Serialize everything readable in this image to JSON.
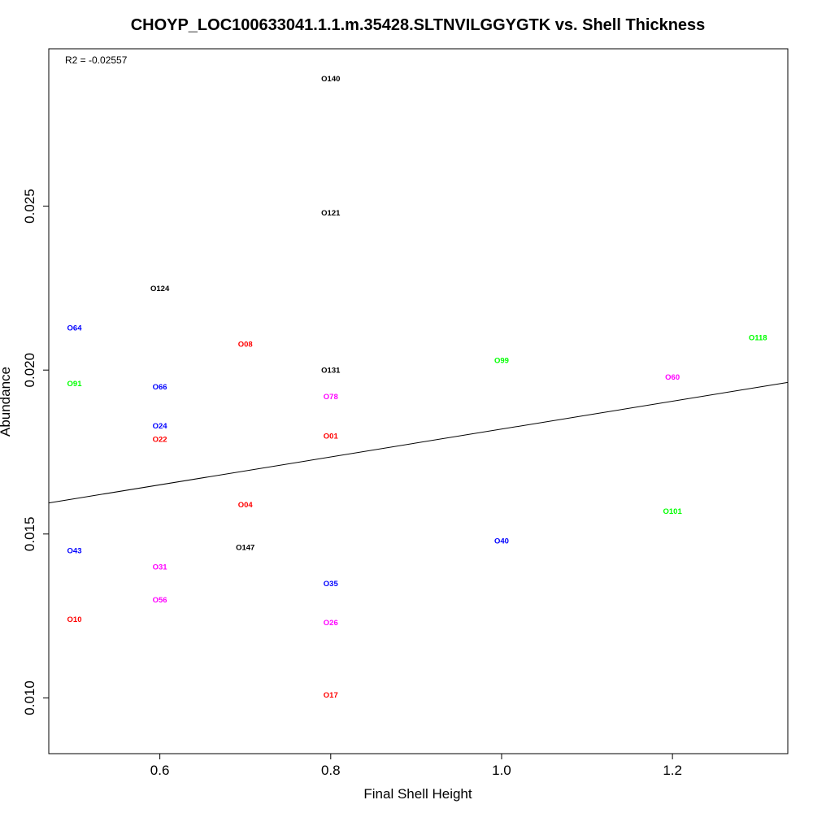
{
  "chart_data": {
    "type": "scatter",
    "title": "CHOYP_LOC100633041.1.1.m.35428.SLTNVILGGYGTK vs. Shell Thickness",
    "xlabel": "Final Shell Height",
    "ylabel": "Abundance",
    "annotation": "R2 = -0.02557",
    "xlim": [
      0.47,
      1.335
    ],
    "ylim": [
      0.0083,
      0.0298
    ],
    "x_ticks": [
      0.6,
      0.8,
      1.0,
      1.2
    ],
    "x_tick_labels": [
      "0.6",
      "0.8",
      "1.0",
      "1.2"
    ],
    "y_ticks": [
      0.01,
      0.015,
      0.02,
      0.025
    ],
    "y_tick_labels": [
      "0.010",
      "0.015",
      "0.020",
      "0.025"
    ],
    "grid": false,
    "regression_line": {
      "intercept": 0.01395,
      "slope": 0.00425
    },
    "colors": {
      "black": "#000000",
      "red": "#ff0000",
      "blue": "#0000ff",
      "green": "#00ff00",
      "magenta": "#ff00ff"
    },
    "points": [
      {
        "label": "O140",
        "x": 0.8,
        "y": 0.0289,
        "color": "#000000"
      },
      {
        "label": "O121",
        "x": 0.8,
        "y": 0.0248,
        "color": "#000000"
      },
      {
        "label": "O124",
        "x": 0.6,
        "y": 0.0225,
        "color": "#000000"
      },
      {
        "label": "O64",
        "x": 0.5,
        "y": 0.0213,
        "color": "#0000ff"
      },
      {
        "label": "O118",
        "x": 1.3,
        "y": 0.021,
        "color": "#00ff00"
      },
      {
        "label": "O08",
        "x": 0.7,
        "y": 0.0208,
        "color": "#ff0000"
      },
      {
        "label": "O99",
        "x": 1.0,
        "y": 0.0203,
        "color": "#00ff00"
      },
      {
        "label": "O131",
        "x": 0.8,
        "y": 0.02,
        "color": "#000000"
      },
      {
        "label": "O60",
        "x": 1.2,
        "y": 0.0198,
        "color": "#ff00ff"
      },
      {
        "label": "O91",
        "x": 0.5,
        "y": 0.0196,
        "color": "#00ff00"
      },
      {
        "label": "O66",
        "x": 0.6,
        "y": 0.0195,
        "color": "#0000ff"
      },
      {
        "label": "O78",
        "x": 0.8,
        "y": 0.0192,
        "color": "#ff00ff"
      },
      {
        "label": "O24",
        "x": 0.6,
        "y": 0.0183,
        "color": "#0000ff"
      },
      {
        "label": "O01",
        "x": 0.8,
        "y": 0.018,
        "color": "#ff0000"
      },
      {
        "label": "O22",
        "x": 0.6,
        "y": 0.0179,
        "color": "#ff0000"
      },
      {
        "label": "O04",
        "x": 0.7,
        "y": 0.0159,
        "color": "#ff0000"
      },
      {
        "label": "O101",
        "x": 1.2,
        "y": 0.0157,
        "color": "#00ff00"
      },
      {
        "label": "O40",
        "x": 1.0,
        "y": 0.0148,
        "color": "#0000ff"
      },
      {
        "label": "O147",
        "x": 0.7,
        "y": 0.0146,
        "color": "#000000"
      },
      {
        "label": "O43",
        "x": 0.5,
        "y": 0.0145,
        "color": "#0000ff"
      },
      {
        "label": "O31",
        "x": 0.6,
        "y": 0.014,
        "color": "#ff00ff"
      },
      {
        "label": "O35",
        "x": 0.8,
        "y": 0.0135,
        "color": "#0000ff"
      },
      {
        "label": "O56",
        "x": 0.6,
        "y": 0.013,
        "color": "#ff00ff"
      },
      {
        "label": "O10",
        "x": 0.5,
        "y": 0.0124,
        "color": "#ff0000"
      },
      {
        "label": "O26",
        "x": 0.8,
        "y": 0.0123,
        "color": "#ff00ff"
      },
      {
        "label": "O17",
        "x": 0.8,
        "y": 0.0101,
        "color": "#ff0000"
      }
    ]
  }
}
